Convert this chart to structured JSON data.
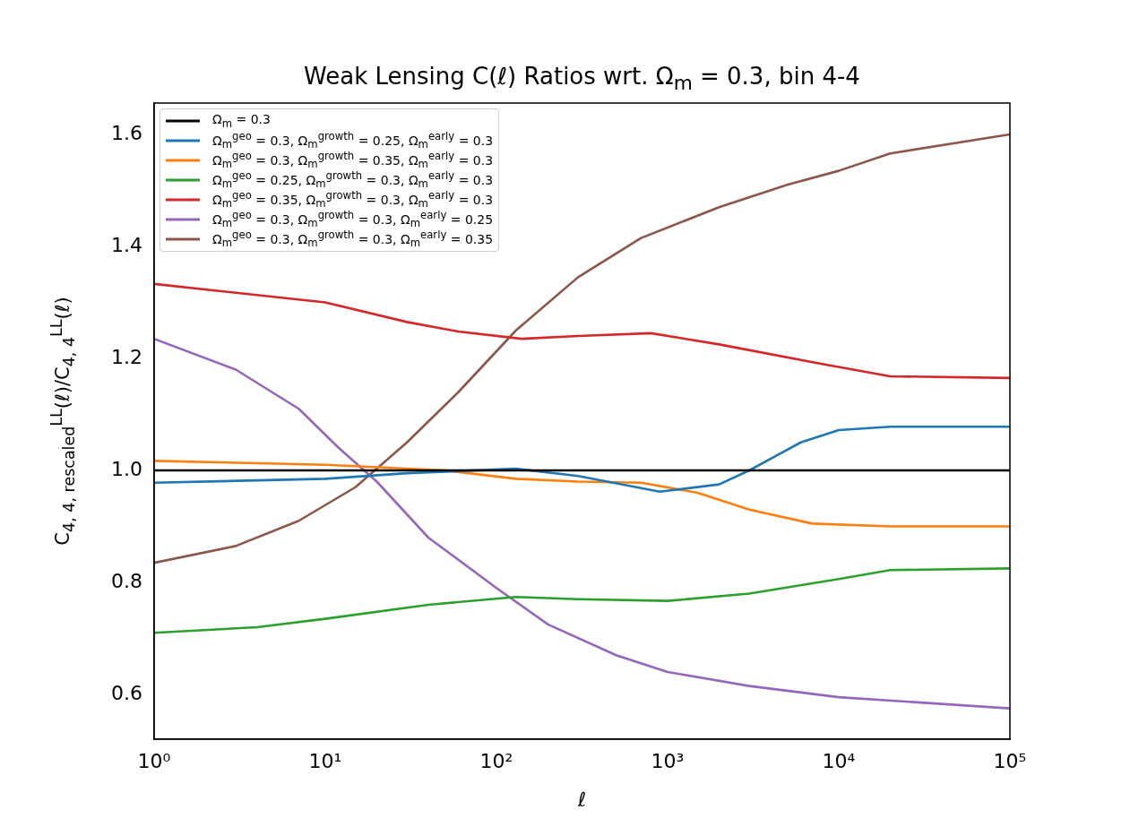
{
  "chart_data": {
    "type": "line",
    "title": "Weak Lensing C(ℓ) Ratios wrt. Ω$_{m}$ = 0.3, bin 4-4",
    "xlabel": "ℓ",
    "ylabel": "C$_{4, 4, rescaled}$$^{LL}$(ℓ)/C$_{4, 4}$$^{LL}$(ℓ)",
    "log": "x",
    "xlim": [
      1,
      100000
    ],
    "xticks": [
      {
        "value": 1,
        "label": "10⁰"
      },
      {
        "value": 10,
        "label": "10¹"
      },
      {
        "value": 100,
        "label": "10²"
      },
      {
        "value": 1000,
        "label": "10³"
      },
      {
        "value": 10000,
        "label": "10⁴"
      },
      {
        "value": 100000,
        "label": "10⁵"
      }
    ],
    "ylim": [
      0.52,
      1.656
    ],
    "yticks": [
      {
        "value": 0.6,
        "label": "0.6"
      },
      {
        "value": 0.8,
        "label": "0.8"
      },
      {
        "value": 1,
        "label": "1.0"
      },
      {
        "value": 1.2,
        "label": "1.2"
      },
      {
        "value": 1.4,
        "label": "1.4"
      },
      {
        "value": 1.6,
        "label": "1.6"
      }
    ],
    "grid": false,
    "legend": "top left",
    "marker": "none",
    "line_style": "solid",
    "series": [
      {
        "name": "Ω$_{m}$ = 0.3",
        "color": "#000000",
        "x": [
          1,
          100000
        ],
        "values": [
          1,
          1
        ]
      },
      {
        "name": "Ω$_{m}$$^{geo}$ = 0.3, Ω$_{m}$$^{growth}$ = 0.25, Ω$_{m}$$^{early}$ = 0.3",
        "color": "#1f77b4",
        "x": [
          1,
          10,
          30,
          130,
          300,
          900,
          2000,
          3000,
          6000,
          10000,
          20000,
          100000
        ],
        "values": [
          0.978,
          0.985,
          0.995,
          1.003,
          0.99,
          0.962,
          0.975,
          1.0,
          1.05,
          1.072,
          1.078,
          1.078
        ]
      },
      {
        "name": "Ω$_{m}$$^{geo}$ = 0.3, Ω$_{m}$$^{growth}$ = 0.35, Ω$_{m}$$^{early}$ = 0.3",
        "color": "#ff7f0e",
        "x": [
          1,
          10,
          50,
          130,
          300,
          700,
          1500,
          3000,
          7000,
          20000,
          100000
        ],
        "values": [
          1.017,
          1.01,
          1.0,
          0.985,
          0.98,
          0.978,
          0.96,
          0.93,
          0.905,
          0.9,
          0.9
        ]
      },
      {
        "name": "Ω$_{m}$$^{geo}$ = 0.25, Ω$_{m}$$^{growth}$ = 0.3, Ω$_{m}$$^{early}$ = 0.3",
        "color": "#2ca02c",
        "x": [
          1,
          4,
          10,
          40,
          130,
          300,
          1000,
          3000,
          10000,
          20000,
          100000
        ],
        "values": [
          0.71,
          0.72,
          0.735,
          0.76,
          0.774,
          0.77,
          0.767,
          0.78,
          0.806,
          0.822,
          0.825
        ]
      },
      {
        "name": "Ω$_{m}$$^{geo}$ = 0.35, Ω$_{m}$$^{growth}$ = 0.3, Ω$_{m}$$^{early}$ = 0.3",
        "color": "#d62728",
        "x": [
          1,
          10,
          30,
          60,
          140,
          300,
          800,
          2000,
          8000,
          20000,
          100000
        ],
        "values": [
          1.333,
          1.3,
          1.265,
          1.248,
          1.235,
          1.24,
          1.245,
          1.225,
          1.19,
          1.168,
          1.165
        ]
      },
      {
        "name": "Ω$_{m}$$^{geo}$ = 0.3, Ω$_{m}$$^{growth}$ = 0.3, Ω$_{m}$$^{early}$ = 0.25",
        "color": "#9467bd",
        "x": [
          1,
          3,
          7,
          12,
          20,
          40,
          100,
          200,
          500,
          1000,
          3000,
          10000,
          100000
        ],
        "values": [
          1.235,
          1.18,
          1.11,
          1.04,
          0.98,
          0.88,
          0.79,
          0.725,
          0.67,
          0.64,
          0.615,
          0.595,
          0.575
        ]
      },
      {
        "name": "Ω$_{m}$$^{geo}$ = 0.3, Ω$_{m}$$^{growth}$ = 0.3, Ω$_{m}$$^{early}$ = 0.35",
        "color": "#8c564b",
        "x": [
          1,
          3,
          7,
          15,
          30,
          60,
          130,
          300,
          700,
          2000,
          5000,
          10000,
          20000,
          100000
        ],
        "values": [
          0.835,
          0.865,
          0.91,
          0.97,
          1.05,
          1.14,
          1.25,
          1.345,
          1.415,
          1.47,
          1.51,
          1.535,
          1.566,
          1.6
        ]
      }
    ]
  }
}
